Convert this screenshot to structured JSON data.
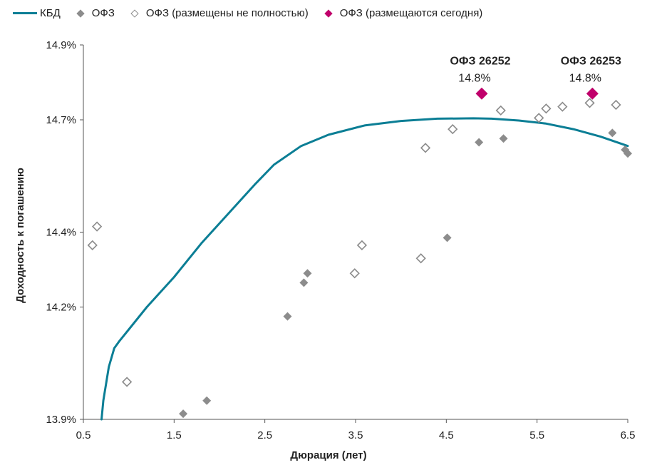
{
  "chart_data": {
    "type": "scatter",
    "title": "",
    "xlabel": "Дюрация (лет)",
    "ylabel": "Доходность к погашению",
    "xlim": [
      0.5,
      6.5
    ],
    "ylim": [
      13.9,
      14.9
    ],
    "x_ticks": [
      "0.5",
      "1.5",
      "2.5",
      "3.5",
      "4.5",
      "5.5",
      "6.5"
    ],
    "y_ticks": [
      "13.9%",
      "14.2%",
      "14.4%",
      "14.7%",
      "14.9%"
    ],
    "grid": false,
    "legend_position": "top",
    "colors": {
      "curve": "#0B7E95",
      "ofz": "#8C8C8C",
      "ofz_partial": "#8C8C8C",
      "ofz_today": "#C0006B"
    },
    "series": [
      {
        "name": "КБД",
        "kind": "line",
        "x": [
          0.7,
          0.72,
          0.78,
          0.84,
          0.9,
          1.0,
          1.2,
          1.5,
          1.8,
          2.1,
          2.4,
          2.6,
          2.9,
          3.2,
          3.6,
          4.0,
          4.4,
          4.8,
          5.0,
          5.3,
          5.6,
          5.9,
          6.2,
          6.5
        ],
        "y": [
          13.9,
          13.95,
          14.04,
          14.09,
          14.11,
          14.14,
          14.2,
          14.28,
          14.37,
          14.45,
          14.53,
          14.58,
          14.63,
          14.66,
          14.685,
          14.697,
          14.703,
          14.704,
          14.703,
          14.698,
          14.69,
          14.675,
          14.655,
          14.63
        ]
      },
      {
        "name": "ОФЗ",
        "kind": "scatter",
        "x": [
          1.6,
          1.86,
          2.75,
          2.93,
          2.97,
          4.51,
          4.86,
          5.13,
          6.33,
          6.47,
          6.5
        ],
        "y": [
          13.915,
          13.95,
          14.175,
          14.265,
          14.29,
          14.385,
          14.64,
          14.65,
          14.665,
          14.62,
          14.61
        ]
      },
      {
        "name": "ОФЗ (размещены не полностью)",
        "kind": "scatter",
        "x": [
          0.6,
          0.65,
          0.98,
          3.49,
          3.57,
          4.22,
          4.27,
          4.57,
          5.1,
          5.52,
          5.6,
          5.78,
          6.08,
          6.37
        ],
        "y": [
          14.365,
          14.415,
          14.0,
          14.29,
          14.365,
          14.33,
          14.625,
          14.675,
          14.725,
          14.705,
          14.73,
          14.735,
          14.745,
          14.74
        ]
      },
      {
        "name": "ОФЗ (размещаются сегодня)",
        "kind": "scatter",
        "x": [
          4.89,
          6.11
        ],
        "y": [
          14.77,
          14.77
        ]
      }
    ],
    "annotations": [
      {
        "title": "ОФЗ 26252",
        "value": "14.8%",
        "x": 4.89,
        "y": 14.77
      },
      {
        "title": "ОФЗ 26253",
        "value": "14.8%",
        "x": 6.11,
        "y": 14.77
      }
    ]
  }
}
